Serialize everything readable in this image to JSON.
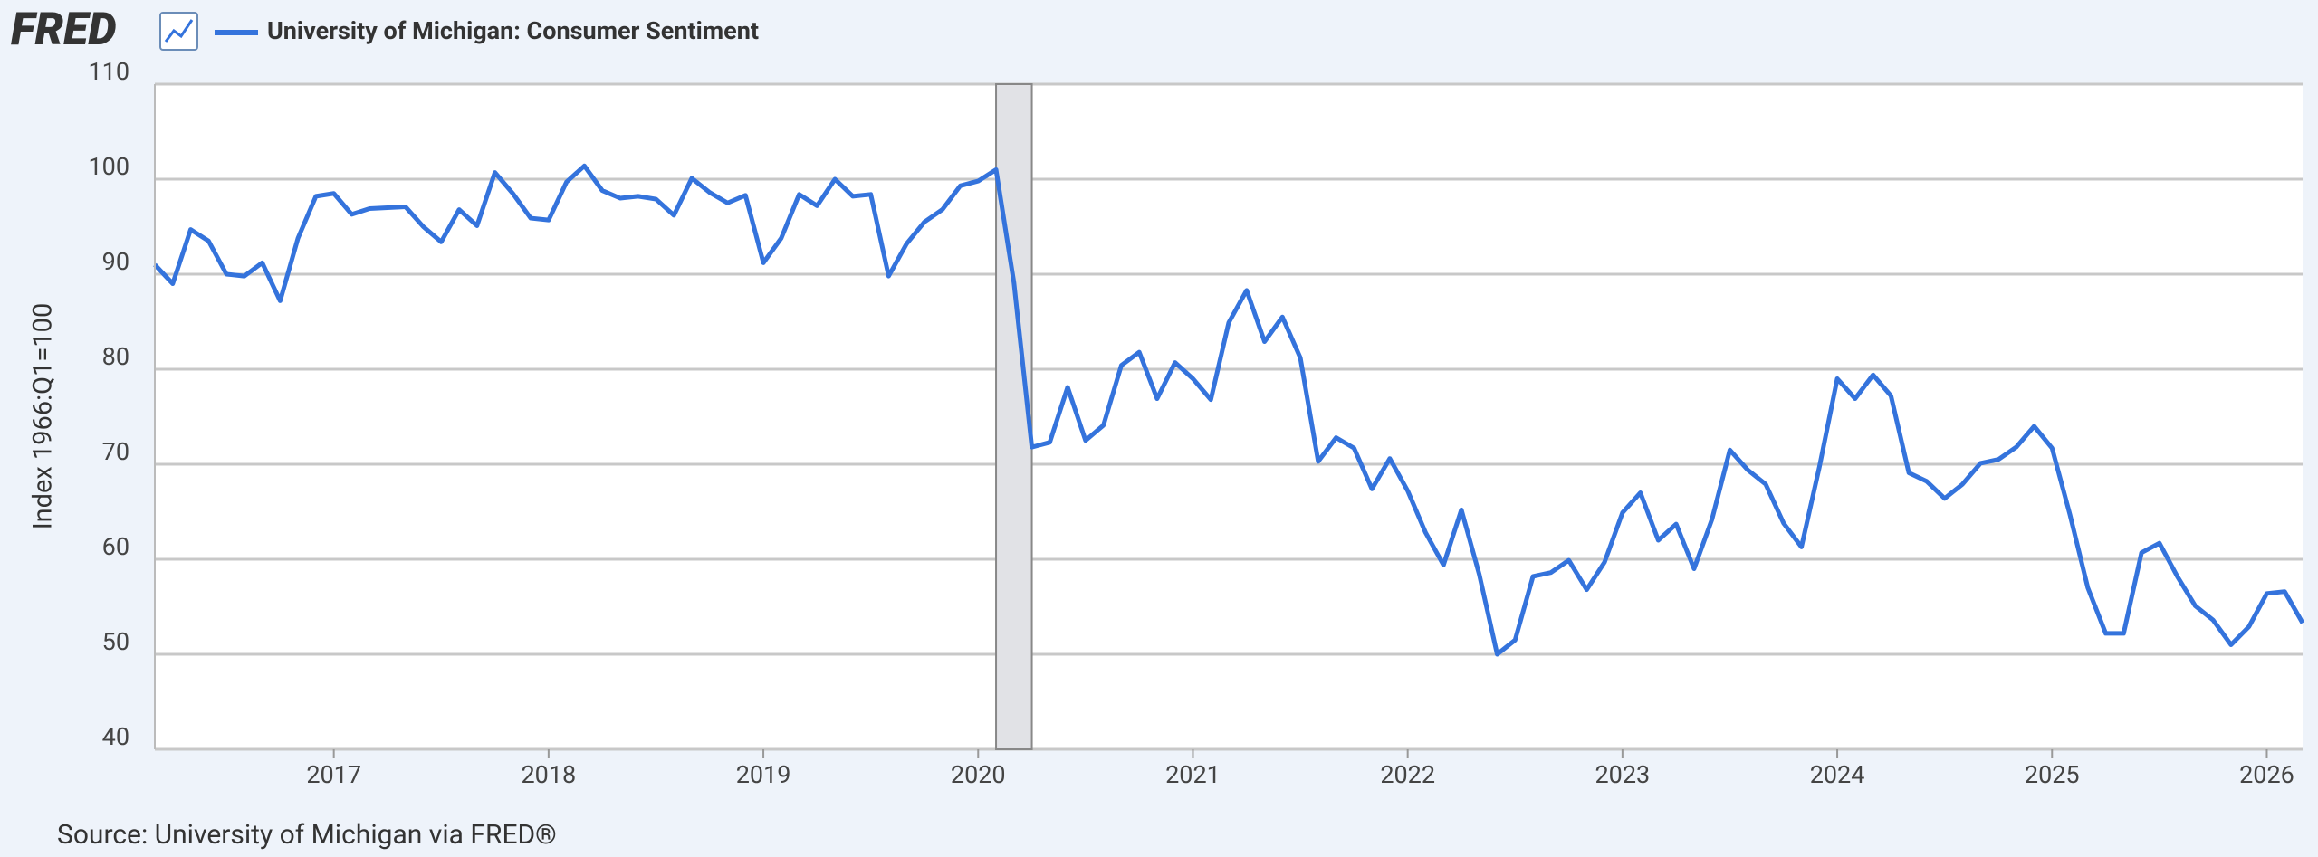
{
  "logo": "FRED",
  "source": "Source: University of Michigan via FRED®",
  "chart_data": {
    "type": "line",
    "y_label": "Index 1966:Q1=100",
    "x": [
      "2016-03",
      "2016-04",
      "2016-05",
      "2016-06",
      "2016-07",
      "2016-08",
      "2016-09",
      "2016-10",
      "2016-11",
      "2016-12",
      "2017-01",
      "2017-02",
      "2017-03",
      "2017-04",
      "2017-05",
      "2017-06",
      "2017-07",
      "2017-08",
      "2017-09",
      "2017-10",
      "2017-11",
      "2017-12",
      "2018-01",
      "2018-02",
      "2018-03",
      "2018-04",
      "2018-05",
      "2018-06",
      "2018-07",
      "2018-08",
      "2018-09",
      "2018-10",
      "2018-11",
      "2018-12",
      "2019-01",
      "2019-02",
      "2019-03",
      "2019-04",
      "2019-05",
      "2019-06",
      "2019-07",
      "2019-08",
      "2019-09",
      "2019-10",
      "2019-11",
      "2019-12",
      "2020-01",
      "2020-02",
      "2020-03",
      "2020-04",
      "2020-05",
      "2020-06",
      "2020-07",
      "2020-08",
      "2020-09",
      "2020-10",
      "2020-11",
      "2020-12",
      "2021-01",
      "2021-02",
      "2021-03",
      "2021-04",
      "2021-05",
      "2021-06",
      "2021-07",
      "2021-08",
      "2021-09",
      "2021-10",
      "2021-11",
      "2021-12",
      "2022-01",
      "2022-02",
      "2022-03",
      "2022-04",
      "2022-05",
      "2022-06",
      "2022-07",
      "2022-08",
      "2022-09",
      "2022-10",
      "2022-11",
      "2022-12",
      "2023-01",
      "2023-02",
      "2023-03",
      "2023-04",
      "2023-05",
      "2023-06",
      "2023-07",
      "2023-08",
      "2023-09",
      "2023-10",
      "2023-11",
      "2023-12",
      "2024-01",
      "2024-02",
      "2024-03",
      "2024-04",
      "2024-05",
      "2024-06",
      "2024-07",
      "2024-08",
      "2024-09",
      "2024-10",
      "2024-11",
      "2024-12",
      "2025-01",
      "2025-02",
      "2025-03",
      "2025-04",
      "2025-05",
      "2025-06",
      "2025-07",
      "2025-08",
      "2025-09",
      "2025-10",
      "2025-11",
      "2025-12",
      "2026-01",
      "2026-02",
      "2026-03"
    ],
    "series": [
      {
        "name": "University of Michigan: Consumer Sentiment",
        "color": "#3473dc",
        "values": [
          91.0,
          89.0,
          94.7,
          93.5,
          90.0,
          89.8,
          91.2,
          87.2,
          93.8,
          98.2,
          98.5,
          96.3,
          96.9,
          97.0,
          97.1,
          95.0,
          93.4,
          96.8,
          95.1,
          100.7,
          98.5,
          95.9,
          95.7,
          99.7,
          101.4,
          98.8,
          98.0,
          98.2,
          97.9,
          96.2,
          100.1,
          98.6,
          97.5,
          98.3,
          91.2,
          93.8,
          98.4,
          97.2,
          100.0,
          98.2,
          98.4,
          89.8,
          93.2,
          95.5,
          96.8,
          99.3,
          99.8,
          101.0,
          89.1,
          71.8,
          72.3,
          78.1,
          72.5,
          74.1,
          80.4,
          81.8,
          76.9,
          80.7,
          79.0,
          76.8,
          84.9,
          88.3,
          82.9,
          85.5,
          81.2,
          70.3,
          72.8,
          71.7,
          67.4,
          70.6,
          67.2,
          62.8,
          59.4,
          65.2,
          58.4,
          50.0,
          51.5,
          58.2,
          58.6,
          59.9,
          56.8,
          59.7,
          64.9,
          67.0,
          62.0,
          63.7,
          59.0,
          64.2,
          71.5,
          69.4,
          67.9,
          63.8,
          61.3,
          69.7,
          79.0,
          76.9,
          79.4,
          77.2,
          69.1,
          68.2,
          66.4,
          67.9,
          70.1,
          70.5,
          71.8,
          74.0,
          71.7,
          64.7,
          57.0,
          52.2,
          52.2,
          60.7,
          61.7,
          58.2,
          55.1,
          53.6,
          51.0,
          52.9,
          56.4,
          56.6,
          53.3
        ]
      }
    ],
    "xlim": [
      "2016-03",
      "2026-03"
    ],
    "xticks": [
      2017,
      2018,
      2019,
      2020,
      2021,
      2022,
      2023,
      2024,
      2025,
      2026
    ],
    "ylim": [
      40,
      110
    ],
    "yticks": [
      40,
      50,
      60,
      70,
      80,
      90,
      100,
      110
    ],
    "grid": true,
    "recessions": [
      {
        "start": "2020-02",
        "end": "2020-04"
      }
    ]
  }
}
